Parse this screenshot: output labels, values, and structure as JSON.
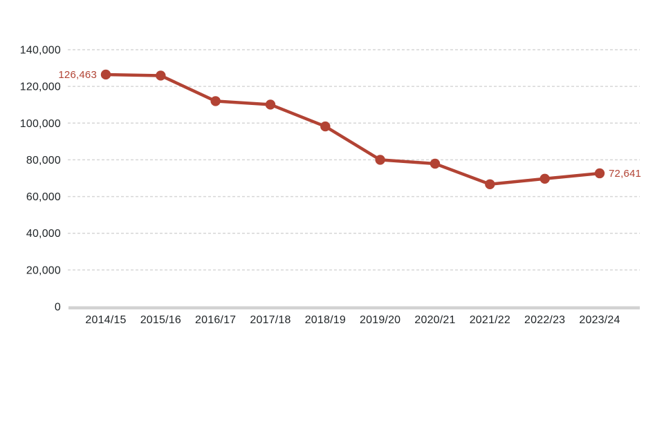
{
  "chart_data": {
    "type": "line",
    "title": "",
    "xlabel": "",
    "ylabel": "",
    "legend": "none",
    "grid": "horizontal-dashed",
    "ylim": [
      0,
      140000
    ],
    "categories": [
      "2014/15",
      "2015/16",
      "2016/17",
      "2017/18",
      "2018/19",
      "2019/20",
      "2020/21",
      "2021/22",
      "2022/23",
      "2023/24"
    ],
    "values": [
      126463,
      125900,
      112000,
      110100,
      98200,
      80000,
      77900,
      66700,
      69700,
      72641
    ],
    "y_ticks": [
      {
        "value": 0,
        "label": "0"
      },
      {
        "value": 20000,
        "label": "20,000"
      },
      {
        "value": 40000,
        "label": "40,000"
      },
      {
        "value": 60000,
        "label": "60,000"
      },
      {
        "value": 80000,
        "label": "80,000"
      },
      {
        "value": 100000,
        "label": "100,000"
      },
      {
        "value": 120000,
        "label": "120,000"
      },
      {
        "value": 140000,
        "label": "140,000"
      }
    ],
    "point_labels": {
      "first": "126,463",
      "last": "72,641"
    },
    "colors": {
      "line": "#b24334",
      "marker": "#b24334",
      "data_label": "#b24334",
      "grid": "#d6d6d6",
      "axis_line": "#d2d2d2",
      "tick_text": "#202528",
      "background": "#ffffff"
    }
  }
}
